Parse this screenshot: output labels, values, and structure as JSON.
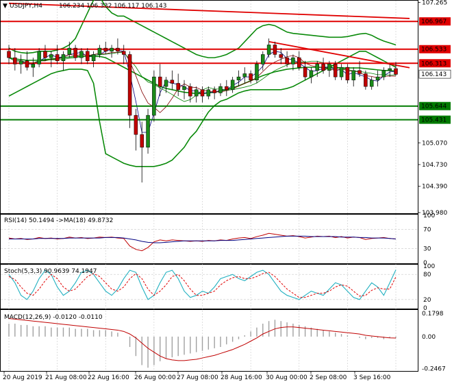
{
  "header": {
    "symbol": "USDJPY,H4",
    "ohlc": "106.234 106.332 106.117 106.143"
  },
  "colors": {
    "bull": "#1a8a1a",
    "bear": "#c00000",
    "bollinger": "#0a8a0a",
    "resistance": "#e00000",
    "support": "#007a00",
    "ma_fast": "#000080",
    "ma_mid": "#800000",
    "ma_slow": "#008000",
    "grid": "#c8c8c8",
    "rsi_line": "#c00000",
    "rsi_ma": "#000080",
    "stoch_main": "#20b0c0",
    "stoch_signal": "#e00000",
    "macd_hist": "#a0a0a0",
    "macd_signal": "#c00000"
  },
  "chart_data": {
    "type": "candlestick",
    "ylim": [
      103.98,
      107.28
    ],
    "price_ticks": [
      "107.265",
      "106.967",
      "106.533",
      "106.313",
      "106.143",
      "105.644",
      "105.431",
      "105.070",
      "104.730",
      "104.390",
      "103.980"
    ],
    "xlabels": [
      "20 Aug 2019",
      "21 Aug 08:00",
      "22 Aug 16:00",
      "26 Aug 00:00",
      "27 Aug 08:00",
      "28 Aug 16:00",
      "30 Aug 00:00",
      "2 Sep 08:00",
      "3 Sep 16:00"
    ],
    "horizontal_levels": [
      {
        "value": 106.967,
        "label": "106.967",
        "kind": "resistance"
      },
      {
        "value": 106.533,
        "label": "106.533",
        "kind": "resistance"
      },
      {
        "value": 106.313,
        "label": "106.313",
        "kind": "resistance"
      },
      {
        "value": 105.644,
        "label": "105.644",
        "kind": "support"
      },
      {
        "value": 105.431,
        "label": "105.431",
        "kind": "support"
      }
    ],
    "current_price": {
      "value": 106.143,
      "label": "106.143"
    },
    "candles": [
      [
        106.5,
        106.6,
        106.3,
        106.4
      ],
      [
        106.4,
        106.55,
        106.2,
        106.3
      ],
      [
        106.3,
        106.45,
        106.15,
        106.35
      ],
      [
        106.35,
        106.5,
        106.2,
        106.25
      ],
      [
        106.25,
        106.4,
        106.1,
        106.3
      ],
      [
        106.3,
        106.55,
        106.25,
        106.5
      ],
      [
        106.5,
        106.6,
        106.35,
        106.4
      ],
      [
        106.4,
        106.5,
        106.25,
        106.45
      ],
      [
        106.45,
        106.6,
        106.3,
        106.35
      ],
      [
        106.35,
        106.5,
        106.2,
        106.45
      ],
      [
        106.45,
        106.65,
        106.4,
        106.55
      ],
      [
        106.55,
        106.6,
        106.35,
        106.4
      ],
      [
        106.4,
        106.55,
        106.3,
        106.5
      ],
      [
        106.5,
        106.55,
        106.3,
        106.35
      ],
      [
        106.35,
        106.5,
        106.25,
        106.45
      ],
      [
        106.45,
        106.6,
        106.4,
        106.55
      ],
      [
        106.55,
        106.65,
        106.45,
        106.5
      ],
      [
        106.5,
        106.6,
        106.4,
        106.55
      ],
      [
        106.55,
        106.7,
        106.45,
        106.5
      ],
      [
        106.5,
        106.6,
        106.3,
        106.45
      ],
      [
        106.45,
        106.5,
        105.3,
        105.5
      ],
      [
        105.5,
        105.6,
        104.95,
        105.2
      ],
      [
        105.2,
        105.4,
        104.45,
        105.0
      ],
      [
        105.0,
        105.6,
        104.9,
        105.5
      ],
      [
        105.5,
        106.2,
        105.4,
        106.1
      ],
      [
        106.1,
        106.3,
        105.8,
        105.95
      ],
      [
        105.95,
        106.1,
        105.85,
        106.05
      ],
      [
        106.05,
        106.2,
        105.9,
        106.0
      ],
      [
        106.0,
        106.15,
        105.8,
        105.9
      ],
      [
        105.9,
        106.05,
        105.75,
        105.95
      ],
      [
        105.95,
        106.0,
        105.7,
        105.8
      ],
      [
        105.8,
        105.95,
        105.7,
        105.9
      ],
      [
        105.9,
        105.95,
        105.7,
        105.8
      ],
      [
        105.8,
        105.95,
        105.75,
        105.9
      ],
      [
        105.9,
        105.95,
        105.75,
        105.85
      ],
      [
        105.85,
        106.0,
        105.8,
        105.95
      ],
      [
        105.95,
        106.05,
        105.8,
        105.9
      ],
      [
        105.9,
        106.1,
        105.85,
        106.05
      ],
      [
        106.05,
        106.2,
        105.95,
        106.1
      ],
      [
        106.1,
        106.25,
        106.0,
        106.15
      ],
      [
        106.15,
        106.2,
        106.0,
        106.05
      ],
      [
        106.05,
        106.35,
        106.0,
        106.3
      ],
      [
        106.3,
        106.5,
        106.2,
        106.45
      ],
      [
        106.45,
        106.7,
        106.4,
        106.6
      ],
      [
        106.6,
        106.65,
        106.4,
        106.45
      ],
      [
        106.45,
        106.55,
        106.3,
        106.4
      ],
      [
        106.4,
        106.5,
        106.25,
        106.3
      ],
      [
        106.3,
        106.45,
        106.2,
        106.4
      ],
      [
        106.4,
        106.5,
        106.2,
        106.25
      ],
      [
        106.25,
        106.35,
        106.05,
        106.1
      ],
      [
        106.1,
        106.25,
        106.0,
        106.2
      ],
      [
        106.2,
        106.35,
        106.1,
        106.3
      ],
      [
        106.3,
        106.4,
        106.15,
        106.2
      ],
      [
        106.2,
        106.35,
        106.1,
        106.3
      ],
      [
        106.3,
        106.35,
        106.05,
        106.1
      ],
      [
        106.1,
        106.3,
        106.05,
        106.25
      ],
      [
        106.25,
        106.3,
        106.0,
        106.05
      ],
      [
        106.05,
        106.25,
        105.95,
        106.2
      ],
      [
        106.2,
        106.35,
        106.1,
        106.15
      ],
      [
        106.15,
        106.2,
        105.9,
        105.95
      ],
      [
        105.95,
        106.1,
        105.9,
        106.05
      ],
      [
        106.05,
        106.2,
        105.95,
        106.1
      ],
      [
        106.1,
        106.25,
        106.05,
        106.2
      ],
      [
        106.2,
        106.3,
        106.1,
        106.23
      ],
      [
        106.23,
        106.33,
        106.12,
        106.14
      ]
    ],
    "bollinger_upper": [
      106.55,
      106.5,
      106.48,
      106.47,
      106.48,
      106.5,
      106.5,
      106.5,
      106.52,
      106.55,
      106.6,
      106.7,
      106.9,
      107.1,
      107.3,
      107.35,
      107.2,
      107.1,
      107.05,
      107.05,
      107.0,
      106.95,
      106.9,
      106.85,
      106.8,
      106.75,
      106.7,
      106.65,
      106.6,
      106.55,
      106.5,
      106.45,
      106.42,
      106.4,
      106.4,
      106.42,
      106.45,
      106.5,
      106.55,
      106.65,
      106.75,
      106.85,
      106.9,
      106.92,
      106.9,
      106.85,
      106.8,
      106.78,
      106.77,
      106.76,
      106.75,
      106.74,
      106.73,
      106.72,
      106.72,
      106.72,
      106.73,
      106.75,
      106.77,
      106.78,
      106.75,
      106.7,
      106.66,
      106.63,
      106.6
    ],
    "bollinger_middle": [
      106.4,
      106.38,
      106.37,
      106.36,
      106.36,
      106.36,
      106.37,
      106.38,
      106.39,
      106.4,
      106.41,
      106.42,
      106.42,
      106.42,
      106.42,
      106.42,
      106.4,
      106.35,
      106.3,
      106.25,
      106.2,
      106.15,
      106.1,
      106.05,
      106.0,
      105.95,
      105.92,
      105.9,
      105.88,
      105.86,
      105.85,
      105.84,
      105.84,
      105.85,
      105.86,
      105.88,
      105.9,
      105.93,
      105.96,
      106.0,
      106.04,
      106.08,
      106.12,
      106.15,
      106.18,
      106.2,
      106.22,
      106.23,
      106.24,
      106.25,
      106.25,
      106.25,
      106.25,
      106.25,
      106.24,
      106.24,
      106.24,
      106.24,
      106.24,
      106.23,
      106.22,
      106.21,
      106.2,
      106.2,
      106.19
    ],
    "bollinger_lower": [
      105.8,
      105.85,
      105.9,
      105.95,
      106.0,
      106.05,
      106.1,
      106.15,
      106.18,
      106.2,
      106.22,
      106.22,
      106.22,
      106.2,
      106.0,
      105.4,
      104.9,
      104.85,
      104.8,
      104.75,
      104.72,
      104.7,
      104.7,
      104.7,
      104.7,
      104.72,
      104.75,
      104.8,
      104.9,
      105.0,
      105.15,
      105.25,
      105.4,
      105.55,
      105.65,
      105.72,
      105.75,
      105.8,
      105.85,
      105.88,
      105.9,
      105.9,
      105.9,
      105.9,
      105.9,
      105.9,
      105.92,
      105.95,
      106.0,
      106.05,
      106.1,
      106.15,
      106.2,
      106.25,
      106.3,
      106.35,
      106.4,
      106.45,
      106.5,
      106.5,
      106.45,
      106.4,
      106.35,
      106.3,
      106.25
    ],
    "trendline_1": {
      "from": [
        43,
        106.65
      ],
      "to": [
        64,
        106.2
      ]
    },
    "trendline_2": {
      "from": [
        0,
        107.25
      ],
      "to": [
        64,
        106.97
      ]
    },
    "rsi": {
      "label": "RSI(14) 50.1494 ->MA(18) 49.8732",
      "ticks": [
        "100",
        "70",
        "30",
        "0"
      ],
      "ylim": [
        0,
        100
      ],
      "values": [
        52,
        50,
        51,
        49,
        50,
        53,
        51,
        52,
        50,
        51,
        54,
        52,
        53,
        51,
        52,
        54,
        53,
        54,
        52,
        51,
        35,
        28,
        25,
        32,
        44,
        48,
        46,
        48,
        47,
        46,
        45,
        46,
        45,
        47,
        46,
        48,
        47,
        50,
        52,
        53,
        51,
        55,
        58,
        62,
        60,
        58,
        56,
        57,
        55,
        52,
        54,
        56,
        55,
        56,
        53,
        55,
        52,
        54,
        53,
        49,
        51,
        52,
        53,
        51,
        50
      ],
      "ma": [
        50,
        50,
        50,
        50,
        50,
        51,
        51,
        51,
        51,
        51,
        52,
        52,
        52,
        52,
        52,
        52,
        53,
        53,
        53,
        52,
        50,
        48,
        45,
        43,
        42,
        42,
        43,
        44,
        45,
        46,
        46,
        46,
        46,
        46,
        46,
        47,
        47,
        47,
        48,
        49,
        50,
        51,
        52,
        53,
        54,
        55,
        56,
        56,
        56,
        56,
        55,
        55,
        55,
        55,
        55,
        54,
        54,
        54,
        53,
        53,
        52,
        52,
        52,
        51,
        50
      ]
    },
    "stoch": {
      "label": "Stoch(5,3,3) 90.9639 74.1947",
      "ticks": [
        "100",
        "80",
        "20",
        "0"
      ],
      "ylim": [
        0,
        100
      ],
      "main": [
        80,
        60,
        30,
        20,
        40,
        70,
        90,
        80,
        50,
        30,
        40,
        60,
        85,
        90,
        80,
        60,
        40,
        30,
        45,
        70,
        90,
        85,
        50,
        20,
        30,
        60,
        85,
        90,
        70,
        40,
        25,
        30,
        40,
        35,
        50,
        70,
        75,
        80,
        70,
        65,
        75,
        85,
        90,
        80,
        60,
        40,
        30,
        25,
        20,
        30,
        40,
        35,
        30,
        45,
        60,
        55,
        40,
        25,
        20,
        40,
        60,
        50,
        30,
        60,
        91
      ],
      "signal": [
        75,
        68,
        50,
        35,
        30,
        45,
        65,
        80,
        70,
        50,
        40,
        45,
        60,
        75,
        82,
        75,
        60,
        45,
        40,
        50,
        70,
        82,
        70,
        45,
        30,
        40,
        55,
        75,
        80,
        65,
        45,
        30,
        30,
        35,
        40,
        55,
        65,
        72,
        75,
        70,
        70,
        75,
        82,
        85,
        75,
        60,
        45,
        35,
        25,
        25,
        30,
        35,
        35,
        40,
        50,
        55,
        52,
        40,
        28,
        30,
        42,
        48,
        45,
        45,
        74
      ]
    },
    "macd": {
      "label": "MACD(12,26,9) -0.0120 -0.0110",
      "ticks": [
        "0.1798",
        "0.00",
        "-0.2467"
      ],
      "ylim": [
        -0.26,
        0.19
      ],
      "hist": [
        0.1,
        0.1,
        0.09,
        0.09,
        0.08,
        0.08,
        0.08,
        0.07,
        0.07,
        0.07,
        0.07,
        0.06,
        0.06,
        0.06,
        0.05,
        0.05,
        0.05,
        0.04,
        0.03,
        0.0,
        -0.08,
        -0.15,
        -0.22,
        -0.24,
        -0.22,
        -0.19,
        -0.17,
        -0.16,
        -0.15,
        -0.14,
        -0.13,
        -0.12,
        -0.11,
        -0.1,
        -0.09,
        -0.08,
        -0.06,
        -0.04,
        -0.02,
        0.01,
        0.04,
        0.07,
        0.1,
        0.12,
        0.13,
        0.12,
        0.11,
        0.1,
        0.09,
        0.08,
        0.07,
        0.06,
        0.05,
        0.04,
        0.03,
        0.02,
        0.01,
        0.0,
        -0.01,
        -0.02,
        -0.01,
        -0.01,
        -0.02,
        -0.01,
        -0.01
      ],
      "signal": [
        0.14,
        0.135,
        0.13,
        0.125,
        0.12,
        0.115,
        0.11,
        0.105,
        0.1,
        0.095,
        0.09,
        0.085,
        0.08,
        0.075,
        0.07,
        0.065,
        0.06,
        0.055,
        0.05,
        0.04,
        0.02,
        -0.01,
        -0.05,
        -0.09,
        -0.12,
        -0.15,
        -0.17,
        -0.18,
        -0.185,
        -0.185,
        -0.18,
        -0.175,
        -0.165,
        -0.155,
        -0.145,
        -0.13,
        -0.115,
        -0.1,
        -0.08,
        -0.06,
        -0.035,
        -0.01,
        0.02,
        0.04,
        0.06,
        0.07,
        0.075,
        0.075,
        0.07,
        0.065,
        0.06,
        0.055,
        0.05,
        0.045,
        0.04,
        0.035,
        0.03,
        0.025,
        0.02,
        0.01,
        0.005,
        0.0,
        -0.005,
        -0.01,
        -0.011
      ]
    }
  }
}
